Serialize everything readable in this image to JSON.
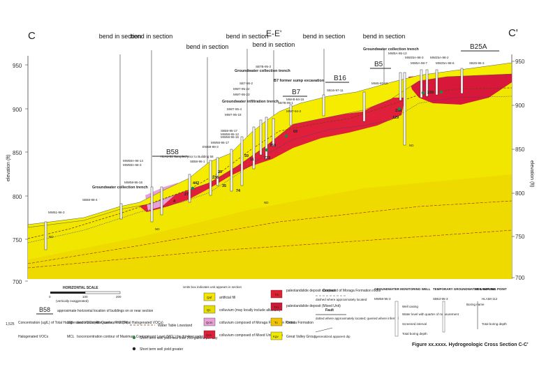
{
  "section": {
    "left_label": "C",
    "right_label": "C'",
    "ee_label": "E-E'",
    "bend_label": "bend in section",
    "axis_label_left": "elevation (ft)",
    "axis_label_right": "elevation (ft)",
    "elevations_left": [
      "950",
      "900",
      "850",
      "800",
      "750",
      "700"
    ],
    "elevations_right": [
      "950",
      "900",
      "850",
      "800",
      "750",
      "700"
    ],
    "buildings": [
      "B58",
      "B16",
      "B5",
      "B25A",
      "B7"
    ]
  },
  "annotations": {
    "gw_trench_left": "Groundwater collection trench",
    "gw_trench_mid": "Groundwater collection trench",
    "gw_trench_right": "Groundwater collection trench",
    "gw_infiltration": "Groundwater infiltration trench",
    "b7_sump": "B7 former sump excavation",
    "hlas": "HLA1-51 Sampled prior to Building 58",
    "nd": "ND"
  },
  "wells": [
    "MW51-96-3",
    "SB58-98-4",
    "MW58-95-18",
    "MW58A-96-14",
    "MW58A-96-3",
    "SB58-96-1",
    "EW58-98-3",
    "MW58-95-17",
    "MW58-95-16",
    "SB58-95-17",
    "MW58-95-12",
    "MW7-95-18",
    "MW7-95-4",
    "MW7-95-23",
    "MW7-95-22",
    "SB7-95-2",
    "SB7B-95-3",
    "MW-B-94-15",
    "SB7B-95-1",
    "MW7-94-3",
    "SB16-97-11",
    "MW5-93-10",
    "MW5A-95-13",
    "MW25A-98-3",
    "MW25A-98-2",
    "MW5A-98-7",
    "MW25A-98-6",
    "SB25-95-3"
  ],
  "concentrations": [
    "442",
    "733",
    "238",
    "59",
    "11",
    "29",
    "236",
    "233",
    "129",
    "760",
    "69",
    "35",
    "74",
    "4",
    "27"
  ],
  "legend": {
    "horizontal_scale": "HORIZONTAL SCALE",
    "scale_ticks": [
      "0",
      "100",
      "200"
    ],
    "scale_note": "(vertically exaggerated)",
    "building_sym": "B58",
    "building_desc": "approximate horizontal location of buildings on or near section",
    "conc_value": "1,525",
    "conc_desc": "Concentration (ug/L) of Total Halogenated VOCs (4th Quarter, FY2004)",
    "halo_desc": "Halogenated VOCs",
    "isocon_val": "100",
    "isocon_desc": "Isoconcentration contour line (Total Halogenated VOCs)",
    "mcl_desc": "Isoconcentration contour of Maximum Contaminant Level (MCL) for drinking water",
    "mcl_tag": "MCL",
    "watertable_desc": "Water Table Lowstand",
    "yield_hi": "Short term well yield less than 200 gallons per day",
    "yield_lo": "Short term well yield greater",
    "units_note": "Units box indicates unit appears in section",
    "units": [
      {
        "code": "Qaf",
        "color": "#f4e600",
        "desc": "artificial fill"
      },
      {
        "code": "Qc",
        "color": "#e5de00",
        "desc": "colluvium (may locally include alluvium)"
      },
      {
        "code": "Qcm",
        "color": "#e8a0d8",
        "desc": "colluvium composed of Moraga Formation Rocks"
      },
      {
        "code": "Qcs",
        "color": "#e0203a",
        "desc": "colluvium composed of Mixed Unit Rocks"
      },
      {
        "code": "Tm",
        "color": "#e02030",
        "desc": "paleolandslide deposit composed of Moraga Formation rocks"
      },
      {
        "code": "Tmi",
        "color": "#cc1b35",
        "desc": "paleolandslide deposit (Mixed Unit)"
      },
      {
        "code": "To",
        "color": "#f2c400",
        "desc": "Orinda Formation"
      },
      {
        "code": "Kgv",
        "color": "#f0e900",
        "desc": "Great Valley Group"
      }
    ],
    "contact_title": "Contact",
    "contact_desc": "dashed where approximately located",
    "fault_title": "Fault",
    "fault_desc": "dotted where approximately located; queried where inferred",
    "dip_desc": "generalized apparent dip",
    "gw_well_title": "GROUNDWATER MONITORING WELL",
    "gw_well_id": "MW58-95-3",
    "well_parts": [
      "Well casing",
      "Water level with quarter of measurement",
      "Screened interval",
      "Total boring depth"
    ],
    "temp_title": "TEMPORARY GROUNDWATER SAMPLING POINT",
    "temp_id": "SB53-95-3",
    "soil_title": "SOIL BORING",
    "soil_id": "HLA58-112",
    "soil_parts": [
      "Boring name",
      "Total boring depth"
    ],
    "figure_title": "Figure xx.xxxx.  Hydrogeologic Cross Section C-C'"
  }
}
